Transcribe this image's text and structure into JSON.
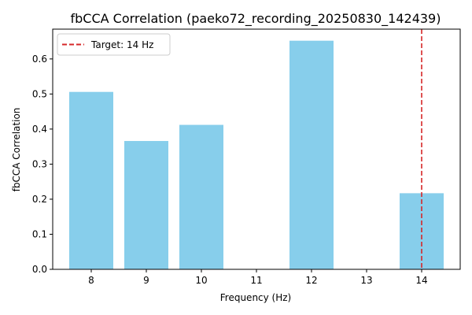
{
  "chart_data": {
    "type": "bar",
    "title": "fbCCA Correlation (paeko72_recording_20250830_142439)",
    "xlabel": "Frequency (Hz)",
    "ylabel": "fbCCA Correlation",
    "x": [
      8,
      9,
      10,
      12,
      14
    ],
    "values": [
      0.506,
      0.366,
      0.412,
      0.652,
      0.217
    ],
    "xticks": [
      8,
      9,
      10,
      11,
      12,
      13,
      14
    ],
    "xlim": [
      7.3,
      14.7
    ],
    "yticks": [
      0.0,
      0.1,
      0.2,
      0.3,
      0.4,
      0.5,
      0.6
    ],
    "ylim": [
      0,
      0.685
    ],
    "bar_color": "#87CEEB",
    "grid": false,
    "target_line": {
      "x": 14,
      "label": "Target: 14 Hz",
      "color": "#d62728",
      "style": "dashed"
    },
    "legend": {
      "placement": "top-left",
      "entries": [
        "Target: 14 Hz"
      ]
    }
  }
}
